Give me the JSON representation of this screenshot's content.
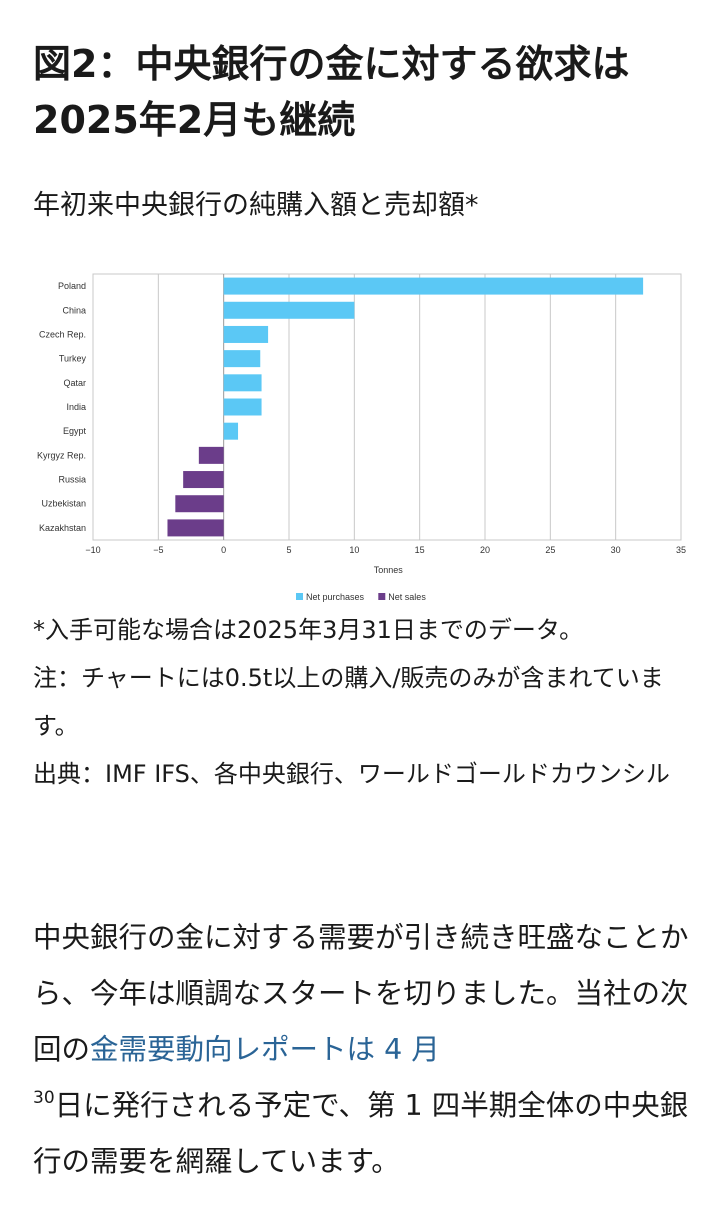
{
  "header": {
    "title_line1": "図2：中央銀行の金に対する欲求は",
    "title_line2": "2025年2月も継続",
    "subtitle": "年初来中央銀行の純購入額と売却額*"
  },
  "chart_data": {
    "type": "bar",
    "orientation": "horizontal",
    "categories": [
      "Poland",
      "China",
      "Czech Rep.",
      "Turkey",
      "Qatar",
      "India",
      "Egypt",
      "Kyrgyz Rep.",
      "Russia",
      "Uzbekistan",
      "Kazakhstan"
    ],
    "series": [
      {
        "name": "Net purchases",
        "values": [
          32.1,
          10.0,
          3.4,
          2.8,
          2.9,
          2.9,
          1.1,
          null,
          null,
          null,
          null
        ],
        "color": "#5bc8f5"
      },
      {
        "name": "Net sales",
        "values": [
          null,
          null,
          null,
          null,
          null,
          null,
          null,
          -1.9,
          -3.1,
          -3.7,
          -4.3
        ],
        "color": "#6b3d8a"
      }
    ],
    "xlabel": "Tonnes",
    "xlim": [
      -10,
      35
    ],
    "xticks": [
      -10,
      -5,
      0,
      5,
      10,
      15,
      20,
      25,
      30,
      35
    ],
    "xtick_labels": [
      "−10",
      "−5",
      "0",
      "5",
      "10",
      "15",
      "20",
      "25",
      "30",
      "35"
    ],
    "grid": true,
    "legend_position": "bottom-center"
  },
  "notes": {
    "line1": "*入手可能な場合は2025年3月31日までのデータ。",
    "line2": "注：チャートには0.5t以上の購入/販売のみが含まれています。",
    "line3": "出典：IMF IFS、各中央銀行、ワールドゴールドカウンシル"
  },
  "body": {
    "text_before_link": "中央銀行の金に対する需要が引き続き旺盛なことから、今年は順調なスタートを切りました。当社の次回の",
    "link_text": "金需要動向レポートは 4 月",
    "superscript": "30",
    "text_after_link": "日に発行される予定で、第 1 四半期全体の中央銀行の需要を網羅しています。"
  }
}
